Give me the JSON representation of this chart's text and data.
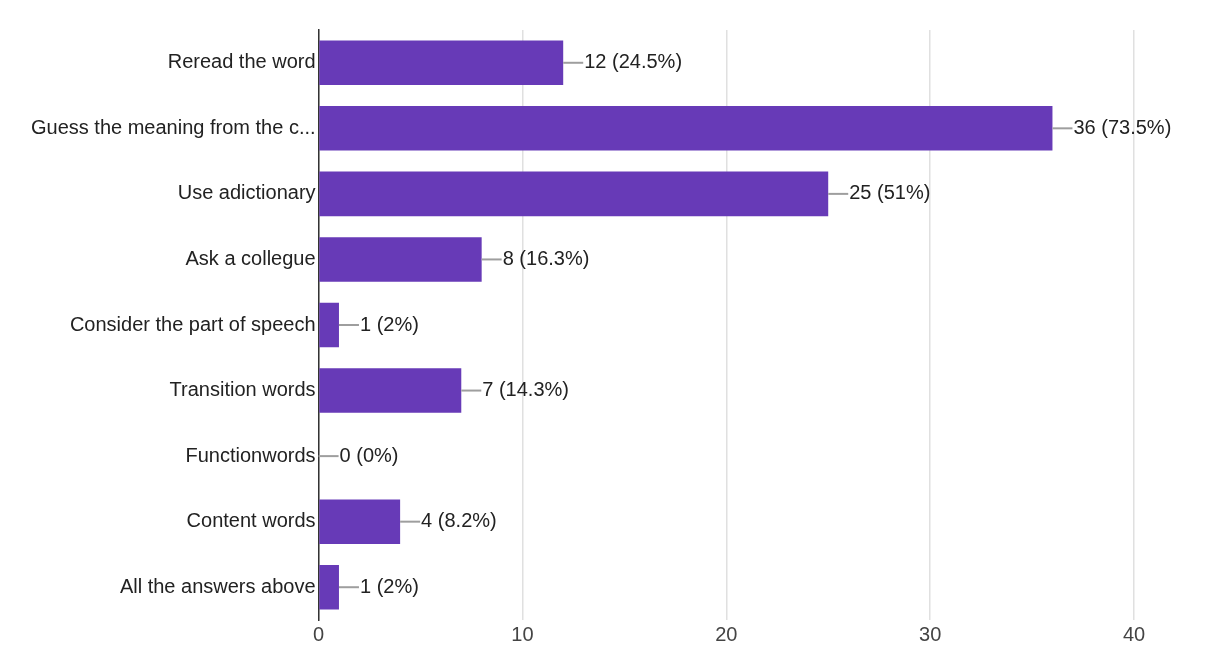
{
  "chart_data": {
    "type": "bar",
    "orientation": "horizontal",
    "categories": [
      "Reread the word",
      "Guess the meaning from the c...",
      "Use adictionary",
      "Ask a collegue",
      "Consider the part of speech",
      "Transition words",
      "Functionwords",
      "Content words",
      "All the answers above"
    ],
    "values": [
      12,
      36,
      25,
      8,
      1,
      7,
      0,
      4,
      1
    ],
    "value_labels": [
      "12 (24.5%)",
      "36 (73.5%)",
      "25 (51%)",
      "8 (16.3%)",
      "1 (2%)",
      "7 (14.3%)",
      "0 (0%)",
      "4 (8.2%)",
      "1 (2%)"
    ],
    "color": "#673ab7",
    "xlim": [
      0,
      40
    ],
    "xticks": [
      0,
      10,
      20,
      30,
      40
    ],
    "grid": "x",
    "legend": false
  }
}
